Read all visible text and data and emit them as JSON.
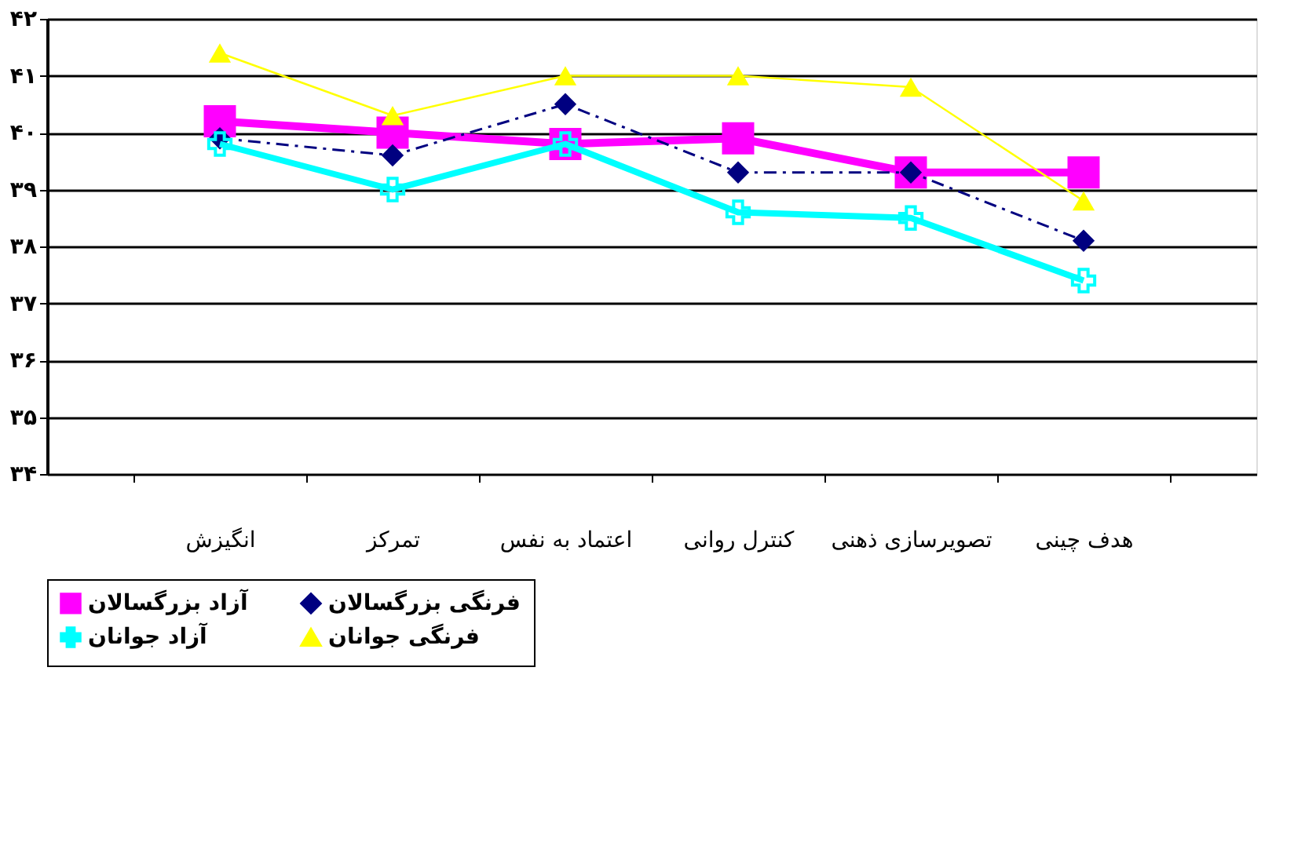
{
  "chart_data": {
    "type": "line",
    "categories": [
      "انگیزش",
      "تمرکز",
      "اعتماد به نفس",
      "کنترل روانی",
      "تصویرسازی ذهنی",
      "هدف چینی"
    ],
    "series": [
      {
        "name": "آزاد بزرگسالان",
        "color": "#ff00ff",
        "marker": "square",
        "line_style": "solid",
        "values": [
          40.2,
          40.0,
          39.8,
          39.9,
          39.3,
          39.3
        ]
      },
      {
        "name": "فرنگی بزرگسالان",
        "color": "#000080",
        "marker": "diamond",
        "line_style": "dashed",
        "values": [
          39.9,
          39.6,
          40.5,
          39.3,
          39.3,
          38.1
        ]
      },
      {
        "name": "آزاد جوانان",
        "color": "#00ffff",
        "marker": "cross",
        "line_style": "solid",
        "values": [
          39.8,
          39.0,
          39.8,
          38.6,
          38.5,
          37.4
        ]
      },
      {
        "name": "فرنگی جوانان",
        "color": "#ffff00",
        "marker": "triangle",
        "line_style": "solid",
        "values": [
          41.4,
          40.3,
          41.0,
          41.0,
          40.8,
          38.8
        ]
      }
    ],
    "ylim": [
      34,
      42
    ],
    "yticks": [
      {
        "value": 34,
        "label": "۳۴"
      },
      {
        "value": 35,
        "label": "۳۵"
      },
      {
        "value": 36,
        "label": "۳۶"
      },
      {
        "value": 37,
        "label": "۳۷"
      },
      {
        "value": 38,
        "label": "۳۸"
      },
      {
        "value": 39,
        "label": "۳۹"
      },
      {
        "value": 40,
        "label": "۴۰"
      },
      {
        "value": 41,
        "label": "۴۱"
      },
      {
        "value": 42,
        "label": "۴۲"
      }
    ],
    "grid": "y",
    "legend": "bottom"
  }
}
